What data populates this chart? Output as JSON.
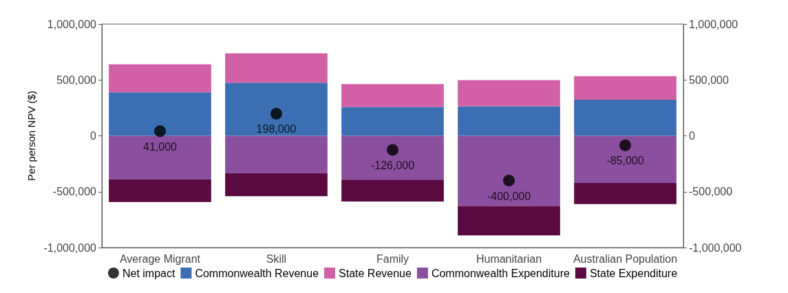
{
  "chart_data": {
    "type": "bar",
    "ylabel": "Per person NPV ($)",
    "categories": [
      "Average Migrant",
      "Skill",
      "Family",
      "Humanitarian",
      "Australian Population"
    ],
    "stacked": true,
    "series": [
      {
        "name": "Net impact",
        "type": "scatter",
        "color": "#000000",
        "x": [
          "Average Migrant",
          "Skill",
          "Family",
          "Humanitarian",
          "Australian Population"
        ],
        "values": [
          41000,
          198000,
          -126000,
          -400000,
          -85000
        ],
        "value_labels": [
          "41,000",
          "198,000",
          "-126,000",
          "-400,000",
          "-85,000"
        ]
      },
      {
        "name": "Commonwealth Revenue",
        "color": "#3c6eb4",
        "values": [
          390000,
          475000,
          258000,
          264000,
          323000
        ]
      },
      {
        "name": "State Revenue",
        "color": "#d160a6",
        "values": [
          250000,
          264000,
          205000,
          235000,
          211000
        ]
      },
      {
        "name": "Commonwealth Expenditure",
        "color": "#8a4f9e",
        "values": [
          -387000,
          -334000,
          -393000,
          -628000,
          -422000
        ]
      },
      {
        "name": "State Expenditure",
        "color": "#5a0a40",
        "values": [
          -205000,
          -206000,
          -194000,
          -263000,
          -188000
        ]
      }
    ],
    "ylim": [
      -1000000,
      1000000
    ],
    "yticks": [
      {
        "value": -1000000,
        "label": "-1,000,000"
      },
      {
        "value": -500000,
        "label": "-500,000"
      },
      0,
      {
        "value": 500000,
        "label": "500,000"
      },
      {
        "value": 1000000,
        "label": "1,000,000"
      }
    ],
    "y2lim": [
      -1000000,
      1000000
    ],
    "y2ticks": [
      {
        "value": -1000000,
        "label": "-1,000,000"
      },
      {
        "value": -500000,
        "label": "-500,000"
      },
      0,
      {
        "value": 500000,
        "label": "500,000"
      },
      {
        "value": 1000000,
        "label": "1,000,000"
      }
    ],
    "marker": "circle",
    "grid": false,
    "legend": "bottom"
  }
}
